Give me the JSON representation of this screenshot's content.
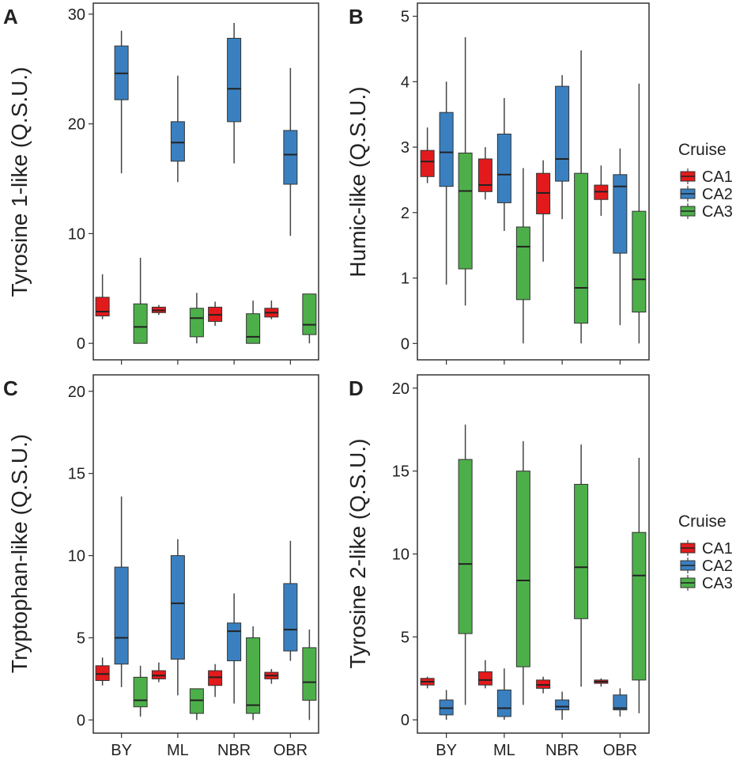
{
  "colors": {
    "CA1": "#e31a1c",
    "CA2": "#3a80c0",
    "CA3": "#4daf4a",
    "frame": "#333333",
    "whisker": "#444444"
  },
  "legend": {
    "title": "Cruise",
    "entries": [
      "CA1",
      "CA2",
      "CA3"
    ]
  },
  "chart_data": [
    {
      "id": "A",
      "label": "A",
      "type": "boxplot",
      "ylabel": "Tyrosine 1-like (Q.S.U.)",
      "xlabel": "",
      "categories": [
        "BY",
        "ML",
        "NBR",
        "OBR"
      ],
      "ylim": [
        -1.5,
        31
      ],
      "yticks": [
        0,
        10,
        20,
        30
      ],
      "show_xticks": false,
      "series": [
        {
          "name": "CA1",
          "boxes": [
            {
              "min": 2.2,
              "q1": 2.5,
              "median": 2.9,
              "q3": 4.2,
              "max": 6.3
            },
            {
              "min": 2.6,
              "q1": 2.8,
              "median": 3.0,
              "q3": 3.3,
              "max": 3.5
            },
            {
              "min": 1.6,
              "q1": 2.0,
              "median": 2.6,
              "q3": 3.3,
              "max": 3.8
            },
            {
              "min": 2.2,
              "q1": 2.4,
              "median": 2.8,
              "q3": 3.2,
              "max": 3.9
            }
          ]
        },
        {
          "name": "CA2",
          "boxes": [
            {
              "min": 15.5,
              "q1": 22.2,
              "median": 24.6,
              "q3": 27.1,
              "max": 28.5
            },
            {
              "min": 14.7,
              "q1": 16.6,
              "median": 18.3,
              "q3": 20.2,
              "max": 24.4
            },
            {
              "min": 16.4,
              "q1": 20.2,
              "median": 23.2,
              "q3": 27.8,
              "max": 29.2
            },
            {
              "min": 9.8,
              "q1": 14.5,
              "median": 17.2,
              "q3": 19.4,
              "max": 25.1
            }
          ]
        },
        {
          "name": "CA3",
          "boxes": [
            {
              "min": 0.0,
              "q1": 0.0,
              "median": 1.5,
              "q3": 3.6,
              "max": 7.8
            },
            {
              "min": 0.0,
              "q1": 0.6,
              "median": 2.3,
              "q3": 3.2,
              "max": 4.6
            },
            {
              "min": 0.0,
              "q1": 0.0,
              "median": 0.6,
              "q3": 2.7,
              "max": 3.9
            },
            {
              "min": 0.0,
              "q1": 0.8,
              "median": 1.7,
              "q3": 4.5,
              "max": 4.5
            }
          ]
        }
      ]
    },
    {
      "id": "B",
      "label": "B",
      "type": "boxplot",
      "ylabel": "Humic-like (Q.S.U.)",
      "xlabel": "",
      "categories": [
        "BY",
        "ML",
        "NBR",
        "OBR"
      ],
      "ylim": [
        -0.25,
        5.2
      ],
      "yticks": [
        0,
        1,
        2,
        3,
        4,
        5
      ],
      "show_xticks": false,
      "series": [
        {
          "name": "CA1",
          "boxes": [
            {
              "min": 2.45,
              "q1": 2.55,
              "median": 2.78,
              "q3": 2.95,
              "max": 3.3
            },
            {
              "min": 2.2,
              "q1": 2.32,
              "median": 2.42,
              "q3": 2.82,
              "max": 3.0
            },
            {
              "min": 1.25,
              "q1": 1.98,
              "median": 2.3,
              "q3": 2.6,
              "max": 2.8
            },
            {
              "min": 1.95,
              "q1": 2.2,
              "median": 2.32,
              "q3": 2.42,
              "max": 2.72
            }
          ]
        },
        {
          "name": "CA2",
          "boxes": [
            {
              "min": 0.9,
              "q1": 2.4,
              "median": 2.92,
              "q3": 3.53,
              "max": 4.0
            },
            {
              "min": 1.72,
              "q1": 2.15,
              "median": 2.58,
              "q3": 3.2,
              "max": 3.75
            },
            {
              "min": 1.9,
              "q1": 2.48,
              "median": 2.82,
              "q3": 3.93,
              "max": 4.1
            },
            {
              "min": 0.28,
              "q1": 1.38,
              "median": 2.4,
              "q3": 2.58,
              "max": 2.98
            }
          ]
        },
        {
          "name": "CA3",
          "boxes": [
            {
              "min": 0.58,
              "q1": 1.14,
              "median": 2.33,
              "q3": 2.91,
              "max": 4.68
            },
            {
              "min": 0.0,
              "q1": 0.67,
              "median": 1.48,
              "q3": 1.78,
              "max": 2.68
            },
            {
              "min": 0.0,
              "q1": 0.31,
              "median": 0.85,
              "q3": 2.6,
              "max": 4.48
            },
            {
              "min": 0.0,
              "q1": 0.48,
              "median": 0.98,
              "q3": 2.02,
              "max": 3.97
            }
          ]
        }
      ]
    },
    {
      "id": "C",
      "label": "C",
      "type": "boxplot",
      "ylabel": "Tryptophan-like (Q.S.U.)",
      "xlabel": "",
      "categories": [
        "BY",
        "ML",
        "NBR",
        "OBR"
      ],
      "ylim": [
        -0.8,
        21
      ],
      "yticks": [
        0,
        5,
        10,
        15,
        20
      ],
      "show_xticks": true,
      "series": [
        {
          "name": "CA1",
          "boxes": [
            {
              "min": 2.1,
              "q1": 2.4,
              "median": 2.8,
              "q3": 3.3,
              "max": 3.8
            },
            {
              "min": 2.3,
              "q1": 2.5,
              "median": 2.7,
              "q3": 3.0,
              "max": 3.5
            },
            {
              "min": 1.4,
              "q1": 2.1,
              "median": 2.6,
              "q3": 3.0,
              "max": 3.4
            },
            {
              "min": 2.2,
              "q1": 2.5,
              "median": 2.7,
              "q3": 2.9,
              "max": 3.1
            }
          ]
        },
        {
          "name": "CA2",
          "boxes": [
            {
              "min": 2.0,
              "q1": 3.4,
              "median": 5.0,
              "q3": 9.3,
              "max": 13.6
            },
            {
              "min": 1.5,
              "q1": 3.7,
              "median": 7.1,
              "q3": 10.0,
              "max": 11.0
            },
            {
              "min": 1.0,
              "q1": 3.6,
              "median": 5.4,
              "q3": 5.9,
              "max": 7.7
            },
            {
              "min": 3.6,
              "q1": 4.2,
              "median": 5.5,
              "q3": 8.3,
              "max": 10.9
            }
          ]
        },
        {
          "name": "CA3",
          "boxes": [
            {
              "min": 0.2,
              "q1": 0.8,
              "median": 1.2,
              "q3": 2.6,
              "max": 3.3
            },
            {
              "min": 0.0,
              "q1": 0.4,
              "median": 1.2,
              "q3": 1.9,
              "max": 1.9
            },
            {
              "min": 0.0,
              "q1": 0.4,
              "median": 0.9,
              "q3": 5.0,
              "max": 5.7
            },
            {
              "min": 0.0,
              "q1": 1.2,
              "median": 2.3,
              "q3": 4.4,
              "max": 5.5
            }
          ]
        }
      ]
    },
    {
      "id": "D",
      "label": "D",
      "type": "boxplot",
      "ylabel": "Tyrosine 2-like (Q.S.U.)",
      "xlabel": "",
      "categories": [
        "BY",
        "ML",
        "NBR",
        "OBR"
      ],
      "ylim": [
        -0.8,
        20.8
      ],
      "yticks": [
        0,
        5,
        10,
        15,
        20
      ],
      "show_xticks": true,
      "series": [
        {
          "name": "CA1",
          "boxes": [
            {
              "min": 1.9,
              "q1": 2.1,
              "median": 2.3,
              "q3": 2.5,
              "max": 2.6
            },
            {
              "min": 1.9,
              "q1": 2.1,
              "median": 2.4,
              "q3": 2.9,
              "max": 3.6
            },
            {
              "min": 1.6,
              "q1": 1.9,
              "median": 2.1,
              "q3": 2.4,
              "max": 2.6
            },
            {
              "min": 2.0,
              "q1": 2.2,
              "median": 2.3,
              "q3": 2.4,
              "max": 2.5
            }
          ]
        },
        {
          "name": "CA2",
          "boxes": [
            {
              "min": 0.0,
              "q1": 0.3,
              "median": 0.7,
              "q3": 1.2,
              "max": 1.8
            },
            {
              "min": 0.0,
              "q1": 0.2,
              "median": 0.7,
              "q3": 1.8,
              "max": 3.1
            },
            {
              "min": 0.0,
              "q1": 0.6,
              "median": 0.8,
              "q3": 1.2,
              "max": 1.7
            },
            {
              "min": 0.2,
              "q1": 0.6,
              "median": 0.7,
              "q3": 1.5,
              "max": 1.9
            }
          ]
        },
        {
          "name": "CA3",
          "boxes": [
            {
              "min": 0.9,
              "q1": 5.2,
              "median": 9.4,
              "q3": 15.7,
              "max": 17.8
            },
            {
              "min": 0.9,
              "q1": 3.2,
              "median": 8.4,
              "q3": 15.0,
              "max": 16.8
            },
            {
              "min": 2.0,
              "q1": 6.1,
              "median": 9.2,
              "q3": 14.2,
              "max": 16.6
            },
            {
              "min": 0.4,
              "q1": 2.4,
              "median": 8.7,
              "q3": 11.3,
              "max": 15.8
            }
          ]
        }
      ]
    }
  ]
}
